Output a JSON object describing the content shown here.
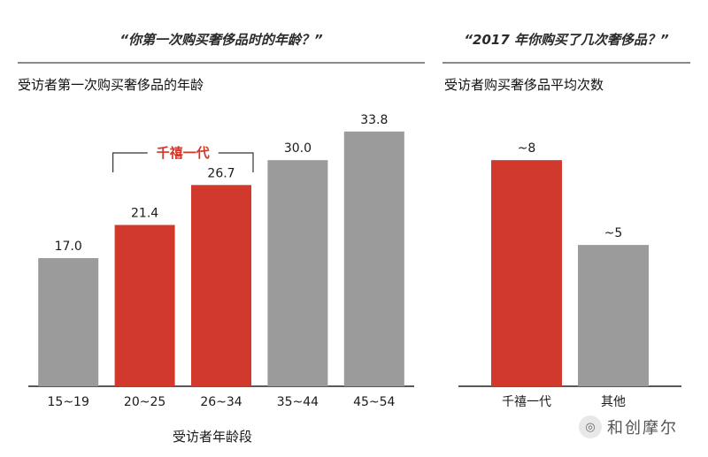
{
  "left_panel": {
    "header": "“你第一次购买奢侈品时的年龄？”",
    "subtitle": "受访者第一次购买奢侈品的年龄"
  },
  "right_panel": {
    "header": "“2017 年你购买了几次奢侈品？”",
    "subtitle": "受访者购买奢侈品平均次数"
  },
  "colors": {
    "highlight": "#d0392b",
    "neutral": "#9b9b9b",
    "axis": "#222222"
  },
  "watermark": {
    "icon": "wechat-icon",
    "icon_glyph": "◎",
    "text": "和创摩尔"
  },
  "chart_data": [
    {
      "type": "bar",
      "title": "受访者第一次购买奢侈品的年龄",
      "xlabel": "受访者年龄段",
      "ylabel": "",
      "categories": [
        "15~19",
        "20~25",
        "26~34",
        "35~44",
        "45~54"
      ],
      "values": [
        17.0,
        21.4,
        26.7,
        30.0,
        33.8
      ],
      "value_labels": [
        "17.0",
        "21.4",
        "26.7",
        "30.0",
        "33.8"
      ],
      "highlight": [
        false,
        true,
        true,
        false,
        false
      ],
      "bracket_label": "千禧一代",
      "ylim": [
        0,
        36
      ],
      "grid": false
    },
    {
      "type": "bar",
      "title": "受访者购买奢侈品平均次数",
      "xlabel": "",
      "ylabel": "",
      "categories": [
        "千禧一代",
        "其他"
      ],
      "values": [
        8,
        5
      ],
      "value_labels": [
        "~8",
        "~5"
      ],
      "highlight": [
        true,
        false
      ],
      "ylim": [
        0,
        9.6
      ],
      "grid": false
    }
  ]
}
